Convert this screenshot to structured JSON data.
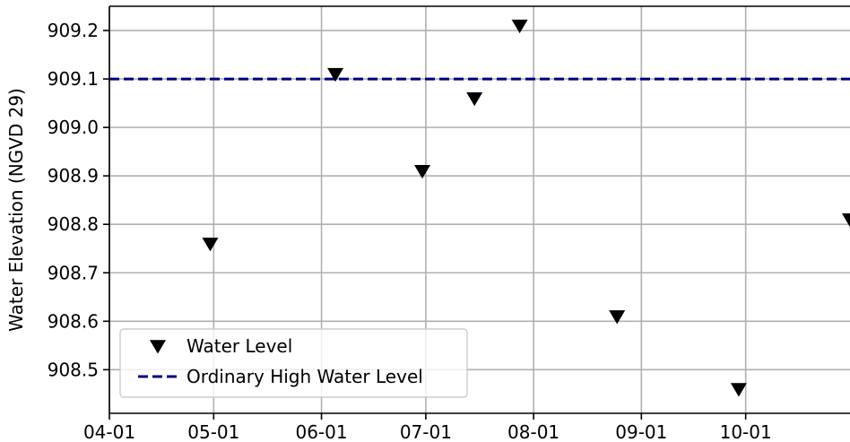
{
  "chart_data": {
    "type": "scatter",
    "ylabel": "Water Elevation (NGVD 29)",
    "x_ticks": [
      "04-01",
      "05-01",
      "06-01",
      "07-01",
      "08-01",
      "09-01",
      "10-01"
    ],
    "y_ticks": [
      "909.2",
      "909.1",
      "909.0",
      "908.9",
      "908.8",
      "908.7",
      "908.6",
      "908.5"
    ],
    "xlim": [
      "2019-04-01",
      "2019-10-31"
    ],
    "ylim": [
      908.41,
      909.25
    ],
    "grid": true,
    "legend_position": "lower-left",
    "series": [
      {
        "name": "Water Level",
        "marker": "triangle-down",
        "color": "#000000",
        "points": [
          {
            "x": "2019-04-30",
            "y": 908.76
          },
          {
            "x": "2019-06-05",
            "y": 909.11
          },
          {
            "x": "2019-06-30",
            "y": 908.91
          },
          {
            "x": "2019-07-15",
            "y": 909.06
          },
          {
            "x": "2019-07-28",
            "y": 909.21
          },
          {
            "x": "2019-08-25",
            "y": 908.61
          },
          {
            "x": "2019-09-29",
            "y": 908.46
          },
          {
            "x": "2019-10-31",
            "y": 908.81
          }
        ]
      },
      {
        "name": "Ordinary High Water Level",
        "style": "dashed-line",
        "color": "#00007f",
        "y": 909.1
      }
    ]
  }
}
